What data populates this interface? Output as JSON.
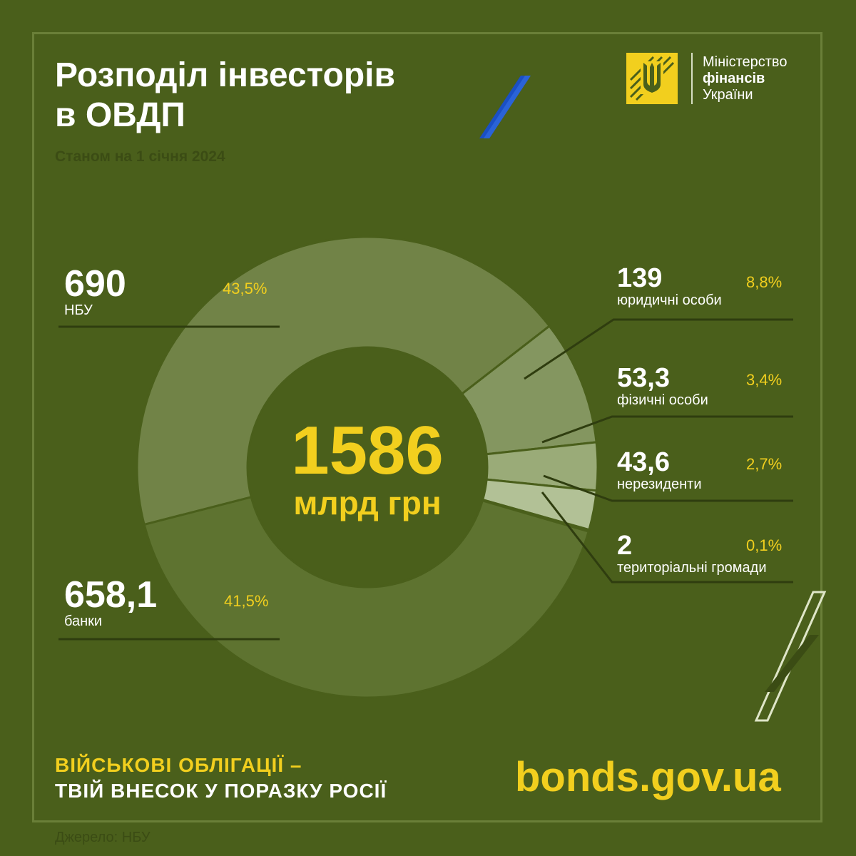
{
  "header": {
    "title_line1": "Розподіл інвесторів",
    "title_line2": "в ОВДП",
    "subtitle": "Станом на 1 січня 2024"
  },
  "logo": {
    "line1": "Міністерство",
    "line2": "фінансів",
    "line3": "України",
    "icon": "trident-emblem-icon"
  },
  "center": {
    "value": "1586",
    "unit": "млрд грн"
  },
  "colors": {
    "background": "#4a5f1b",
    "accent": "#f2cf1e",
    "stripe_blue": "#1a4fc4",
    "slice_nbu": "#718347",
    "slice_banks": "#5e7330",
    "slice_legal": "#849660",
    "slice_individuals": "#9aab78",
    "slice_nonresidents": "#b2c196",
    "slice_communities": "#d8e2bd"
  },
  "chart_data": {
    "type": "pie",
    "unit": "млрд грн",
    "total": 1586,
    "slices": [
      {
        "id": "nbu",
        "label": "НБУ",
        "value": 690,
        "value_text": "690",
        "pct": 43.5,
        "pct_text": "43,5%"
      },
      {
        "id": "legal",
        "label": "юридичні особи",
        "value": 139,
        "value_text": "139",
        "pct": 8.8,
        "pct_text": "8,8%"
      },
      {
        "id": "individuals",
        "label": "фізичні особи",
        "value": 53.3,
        "value_text": "53,3",
        "pct": 3.4,
        "pct_text": "3,4%"
      },
      {
        "id": "nonres",
        "label": "нерезиденти",
        "value": 43.6,
        "value_text": "43,6",
        "pct": 2.7,
        "pct_text": "2,7%"
      },
      {
        "id": "communities",
        "label": "територіальні громади",
        "value": 2,
        "value_text": "2",
        "pct": 0.1,
        "pct_text": "0,1%"
      },
      {
        "id": "banks",
        "label": "банки",
        "value": 658.1,
        "value_text": "658,1",
        "pct": 41.5,
        "pct_text": "41,5%"
      }
    ]
  },
  "footer": {
    "slogan_line1": "ВІЙСЬКОВІ ОБЛІГАЦІЇ –",
    "slogan_line2": "ТВІЙ ВНЕСОК У ПОРАЗКУ РОСІЇ",
    "url": "bonds.gov.ua",
    "source": "Джерело: НБУ"
  }
}
